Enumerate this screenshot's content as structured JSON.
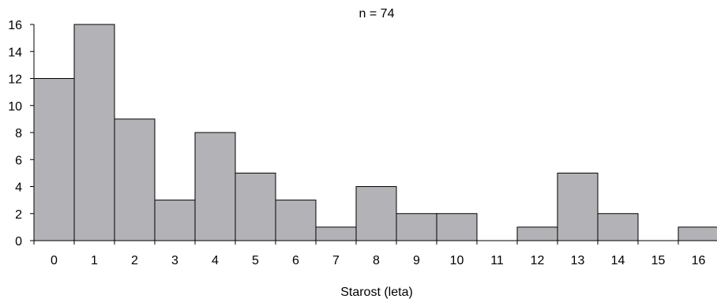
{
  "chart_data": {
    "type": "bar",
    "annotation": "n = 74",
    "xlabel": "Starost (leta)",
    "ylabel": "",
    "categories": [
      "0",
      "1",
      "2",
      "3",
      "4",
      "5",
      "6",
      "7",
      "8",
      "9",
      "10",
      "11",
      "12",
      "13",
      "14",
      "15",
      "16"
    ],
    "values": [
      12,
      16,
      9,
      3,
      8,
      5,
      3,
      1,
      4,
      2,
      2,
      0,
      1,
      5,
      2,
      0,
      1
    ],
    "ylim": [
      0,
      16
    ],
    "yticks": [
      "0",
      "2",
      "4",
      "6",
      "8",
      "10",
      "12",
      "14",
      "16"
    ],
    "grid": false,
    "legend": "none",
    "bar_color": "#b3b3b7",
    "bar_edge_color": "#000000"
  }
}
